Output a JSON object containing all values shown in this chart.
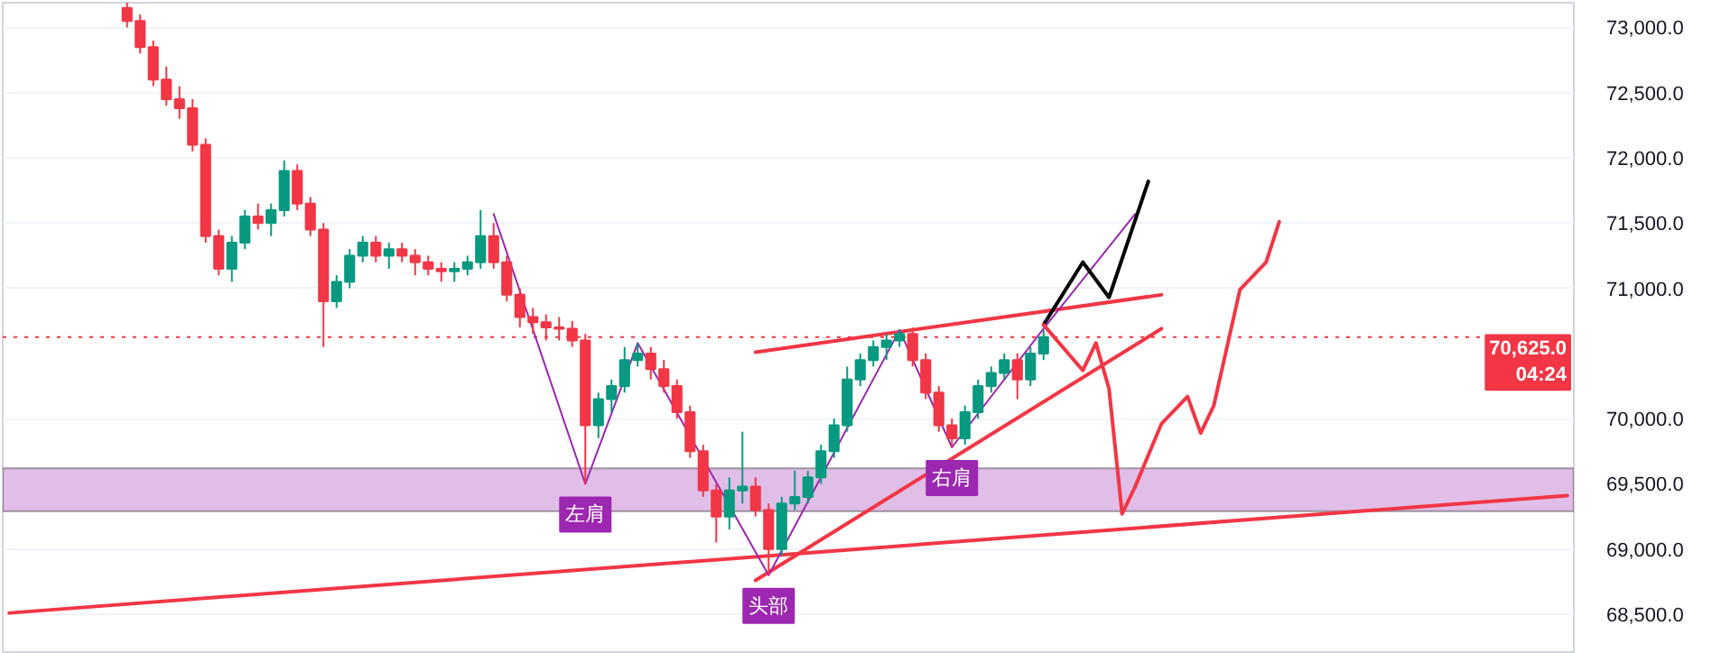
{
  "chart_data": {
    "type": "candlestick",
    "categories": [
      null,
      null,
      null,
      null,
      null,
      null,
      null,
      null,
      null,
      null,
      null,
      null,
      null,
      null,
      null,
      null,
      null,
      null,
      null,
      null,
      null,
      null,
      null,
      null,
      null,
      null,
      null,
      null,
      null,
      null,
      null,
      null,
      null,
      null,
      null,
      null,
      null,
      null,
      null,
      null,
      null,
      null,
      null,
      null,
      null,
      null,
      null,
      null,
      null,
      null,
      null,
      null,
      null,
      null,
      null,
      null,
      null,
      null,
      null,
      null,
      null,
      null,
      null,
      null,
      null,
      null,
      null,
      null,
      null,
      null,
      null,
      null,
      null,
      null,
      null,
      null,
      null,
      null,
      null,
      null,
      null,
      null,
      null,
      null,
      null,
      null,
      null,
      null,
      null,
      null,
      null,
      null,
      null,
      null,
      null,
      null,
      null,
      null,
      null,
      null,
      null,
      null,
      null,
      null,
      null,
      null,
      null,
      null,
      null,
      null,
      null,
      null,
      null,
      null,
      null,
      null,
      null,
      null,
      null,
      null
    ],
    "ohlc": [
      null,
      null,
      null,
      null,
      null,
      null,
      null,
      null,
      null,
      [
        73150,
        73190,
        73000,
        73050
      ],
      [
        73050,
        73100,
        72800,
        72850
      ],
      [
        72850,
        72900,
        72550,
        72600
      ],
      [
        72600,
        72700,
        72400,
        72450
      ],
      [
        72450,
        72550,
        72300,
        72380
      ],
      [
        72380,
        72450,
        72050,
        72100
      ],
      [
        72100,
        72150,
        71350,
        71400
      ],
      [
        71400,
        71450,
        71100,
        71150
      ],
      [
        71150,
        71400,
        71050,
        71350
      ],
      [
        71350,
        71600,
        71300,
        71550
      ],
      [
        71550,
        71650,
        71450,
        71500
      ],
      [
        71500,
        71650,
        71400,
        71600
      ],
      [
        71600,
        71980,
        71550,
        71900
      ],
      [
        71900,
        71950,
        71600,
        71650
      ],
      [
        71650,
        71700,
        71400,
        71450
      ],
      [
        71450,
        71500,
        70550,
        70900
      ],
      [
        70900,
        71100,
        70850,
        71050
      ],
      [
        71050,
        71300,
        71000,
        71250
      ],
      [
        71250,
        71400,
        71200,
        71350
      ],
      [
        71350,
        71400,
        71200,
        71250
      ],
      [
        71250,
        71350,
        71150,
        71300
      ],
      [
        71300,
        71350,
        71200,
        71250
      ],
      [
        71250,
        71300,
        71100,
        71200
      ],
      [
        71200,
        71250,
        71100,
        71150
      ],
      [
        71150,
        71200,
        71050,
        71130
      ],
      [
        71130,
        71200,
        71050,
        71150
      ],
      [
        71150,
        71250,
        71100,
        71200
      ],
      [
        71200,
        71600,
        71150,
        71400
      ],
      [
        71400,
        71500,
        71150,
        71200
      ],
      [
        71200,
        71250,
        70900,
        70950
      ],
      [
        70950,
        71000,
        70700,
        70780
      ],
      [
        70780,
        70850,
        70650,
        70740
      ],
      [
        70740,
        70800,
        70600,
        70700
      ],
      [
        70700,
        70780,
        70600,
        70690
      ],
      [
        70690,
        70750,
        70550,
        70600
      ],
      [
        70600,
        70650,
        69500,
        69950
      ],
      [
        69950,
        70200,
        69850,
        70150
      ],
      [
        70150,
        70300,
        70050,
        70250
      ],
      [
        70250,
        70550,
        70200,
        70450
      ],
      [
        70450,
        70580,
        70400,
        70500
      ],
      [
        70500,
        70550,
        70300,
        70380
      ],
      [
        70380,
        70450,
        70200,
        70250
      ],
      [
        70250,
        70300,
        70000,
        70050
      ],
      [
        70050,
        70100,
        69700,
        69750
      ],
      [
        69750,
        69800,
        69400,
        69450
      ],
      [
        69450,
        69500,
        69050,
        69250
      ],
      [
        69250,
        69550,
        69150,
        69450
      ],
      [
        69450,
        69900,
        69350,
        69480
      ],
      [
        69480,
        69550,
        69250,
        69300
      ],
      [
        69300,
        69350,
        68800,
        69000
      ],
      [
        69000,
        69400,
        68950,
        69350
      ],
      [
        69350,
        69600,
        69300,
        69400
      ],
      [
        69400,
        69600,
        69350,
        69550
      ],
      [
        69550,
        69800,
        69500,
        69750
      ],
      [
        69750,
        70000,
        69700,
        69950
      ],
      [
        69950,
        70400,
        69900,
        70300
      ],
      [
        70300,
        70500,
        70250,
        70450
      ],
      [
        70450,
        70600,
        70400,
        70550
      ],
      [
        70550,
        70650,
        70450,
        70600
      ],
      [
        70600,
        70680,
        70550,
        70650
      ],
      [
        70650,
        70700,
        70400,
        70450
      ],
      [
        70450,
        70500,
        70150,
        70200
      ],
      [
        70200,
        70250,
        69900,
        69950
      ],
      [
        69950,
        70000,
        69780,
        69850
      ],
      [
        69850,
        70100,
        69800,
        70050
      ],
      [
        70050,
        70300,
        70000,
        70250
      ],
      [
        70250,
        70400,
        70200,
        70350
      ],
      [
        70350,
        70500,
        70300,
        70450
      ],
      [
        70450,
        70500,
        70150,
        70300
      ],
      [
        70300,
        70550,
        70250,
        70500
      ],
      [
        70500,
        70680,
        70450,
        70625
      ],
      null,
      null,
      null,
      null,
      null,
      null,
      null,
      null,
      null,
      null,
      null,
      null,
      null,
      null,
      null,
      null,
      null,
      null,
      null,
      null,
      null,
      null,
      null,
      null,
      null,
      null,
      null,
      null,
      null,
      null,
      null,
      null,
      null,
      null,
      null,
      null,
      null,
      null,
      null,
      null
    ],
    "series": [
      {
        "type": "line",
        "color": "#f23645",
        "values": [
          68510,
          null,
          null,
          null,
          null,
          null,
          null,
          null,
          null,
          null,
          null,
          null,
          null,
          null,
          null,
          null,
          null,
          null,
          null,
          null,
          null,
          null,
          null,
          null,
          null,
          null,
          null,
          null,
          null,
          null,
          null,
          null,
          null,
          null,
          null,
          null,
          null,
          null,
          null,
          null,
          null,
          null,
          null,
          null,
          null,
          null,
          null,
          null,
          null,
          null,
          null,
          null,
          null,
          null,
          null,
          null,
          null,
          null,
          null,
          null,
          null,
          null,
          null,
          null,
          null,
          null,
          null,
          null,
          null,
          null,
          null,
          null,
          null,
          null,
          null,
          null,
          null,
          null,
          null,
          null,
          null,
          null,
          null,
          null,
          null,
          null,
          null,
          null,
          null,
          null,
          null,
          null,
          null,
          null,
          null,
          null,
          null,
          null,
          null,
          null,
          null,
          null,
          null,
          null,
          null,
          null,
          null,
          null,
          null,
          null,
          null,
          null,
          null,
          null,
          null,
          null,
          null,
          null,
          null,
          69410
        ]
      },
      {
        "type": "line",
        "color": "#f23645",
        "values": [
          null,
          null,
          null,
          null,
          null,
          null,
          null,
          null,
          null,
          null,
          null,
          null,
          null,
          null,
          null,
          null,
          null,
          null,
          null,
          null,
          null,
          null,
          null,
          null,
          null,
          null,
          null,
          null,
          null,
          null,
          null,
          null,
          null,
          null,
          null,
          null,
          null,
          null,
          null,
          null,
          null,
          null,
          null,
          null,
          null,
          null,
          null,
          null,
          null,
          null,
          null,
          null,
          null,
          null,
          null,
          null,
          null,
          70510,
          null,
          null,
          null,
          null,
          null,
          null,
          null,
          null,
          null,
          null,
          null,
          null,
          null,
          null,
          null,
          null,
          null,
          null,
          null,
          null,
          null,
          null,
          null,
          null,
          null,
          null,
          null,
          null,
          null,
          null,
          70950,
          null,
          null,
          null,
          null,
          null,
          null,
          null,
          null,
          null,
          null,
          null,
          null,
          null,
          null,
          null,
          null,
          null,
          null,
          null,
          null,
          null,
          null,
          null,
          null,
          null,
          null,
          null,
          null,
          null,
          null,
          null
        ]
      },
      {
        "type": "line",
        "color": "#f23645",
        "values": [
          null,
          null,
          null,
          null,
          null,
          null,
          null,
          null,
          null,
          null,
          null,
          null,
          null,
          null,
          null,
          null,
          null,
          null,
          null,
          null,
          null,
          null,
          null,
          null,
          null,
          null,
          null,
          null,
          null,
          null,
          null,
          null,
          null,
          null,
          null,
          null,
          null,
          null,
          null,
          null,
          null,
          null,
          null,
          null,
          null,
          null,
          null,
          null,
          null,
          null,
          null,
          null,
          null,
          null,
          null,
          null,
          null,
          68760,
          null,
          null,
          null,
          null,
          null,
          null,
          null,
          null,
          null,
          null,
          null,
          null,
          null,
          null,
          null,
          null,
          null,
          null,
          null,
          null,
          null,
          null,
          null,
          null,
          null,
          null,
          null,
          null,
          null,
          null,
          70690,
          null,
          null,
          null,
          null,
          null,
          null,
          null,
          null,
          null,
          null,
          null,
          null,
          null,
          null,
          null,
          null,
          null,
          null,
          null,
          null,
          null,
          null,
          null,
          null,
          null,
          null,
          null,
          null,
          null,
          null,
          null
        ]
      },
      {
        "type": "line",
        "color": "#9c27b0",
        "values": [
          null,
          null,
          null,
          null,
          null,
          null,
          null,
          null,
          null,
          null,
          null,
          null,
          null,
          null,
          null,
          null,
          null,
          null,
          null,
          null,
          null,
          null,
          null,
          null,
          null,
          null,
          null,
          null,
          null,
          null,
          null,
          null,
          null,
          null,
          null,
          null,
          null,
          71570,
          null,
          null,
          null,
          null,
          null,
          null,
          69500,
          null,
          null,
          null,
          70580,
          null,
          null,
          null,
          null,
          null,
          null,
          null,
          null,
          null,
          68800,
          null,
          null,
          null,
          null,
          null,
          null,
          null,
          null,
          null,
          70680,
          null,
          null,
          null,
          69780,
          null,
          null,
          null,
          null,
          null,
          null,
          70690,
          null,
          null,
          null,
          null,
          null,
          null,
          71570,
          null,
          null,
          null,
          null,
          null,
          null,
          null,
          null,
          null,
          null,
          null,
          null,
          null,
          null,
          null,
          null,
          null,
          null,
          null,
          null,
          null,
          null,
          null,
          null,
          null,
          null,
          null,
          null,
          null,
          null,
          null,
          null,
          null
        ]
      },
      {
        "type": "line",
        "color": "#000000",
        "values": [
          null,
          null,
          null,
          null,
          null,
          null,
          null,
          null,
          null,
          null,
          null,
          null,
          null,
          null,
          null,
          null,
          null,
          null,
          null,
          null,
          null,
          null,
          null,
          null,
          null,
          null,
          null,
          null,
          null,
          null,
          null,
          null,
          null,
          null,
          null,
          null,
          null,
          null,
          null,
          null,
          null,
          null,
          null,
          null,
          null,
          null,
          null,
          null,
          null,
          null,
          null,
          null,
          null,
          null,
          null,
          null,
          null,
          null,
          null,
          null,
          null,
          null,
          null,
          null,
          null,
          null,
          null,
          null,
          null,
          null,
          null,
          null,
          null,
          null,
          null,
          null,
          null,
          null,
          null,
          70720,
          null,
          null,
          71200,
          null,
          70930,
          null,
          null,
          71820,
          null,
          null,
          null,
          null,
          null,
          null,
          null,
          null,
          null,
          null,
          null,
          null,
          null,
          null,
          null,
          null,
          null,
          null,
          null,
          null,
          null,
          null,
          null,
          null,
          null,
          null,
          null,
          null,
          null,
          null,
          null,
          null
        ]
      },
      {
        "type": "line",
        "color": "#f23645",
        "values": [
          null,
          null,
          null,
          null,
          null,
          null,
          null,
          null,
          null,
          null,
          null,
          null,
          null,
          null,
          null,
          null,
          null,
          null,
          null,
          null,
          null,
          null,
          null,
          null,
          null,
          null,
          null,
          null,
          null,
          null,
          null,
          null,
          null,
          null,
          null,
          null,
          null,
          null,
          null,
          null,
          null,
          null,
          null,
          null,
          null,
          null,
          null,
          null,
          null,
          null,
          null,
          null,
          null,
          null,
          null,
          null,
          null,
          null,
          null,
          null,
          null,
          null,
          null,
          null,
          null,
          null,
          null,
          null,
          null,
          null,
          null,
          null,
          null,
          null,
          null,
          null,
          null,
          null,
          null,
          70720,
          null,
          null,
          70370,
          70580,
          70230,
          69270,
          69480,
          null,
          69960,
          null,
          70170,
          69890,
          70100,
          null,
          70990,
          null,
          71200,
          71510,
          null,
          null,
          null,
          null,
          null,
          null,
          null,
          null,
          null,
          null,
          null,
          null,
          null,
          null,
          null,
          null,
          null,
          null,
          null,
          null,
          null,
          null
        ]
      }
    ],
    "bands": [
      {
        "axis": "y",
        "from": 69290,
        "to": 69620,
        "color": "#e1bee7"
      }
    ],
    "ref_lines": [
      {
        "axis": "y",
        "value": 70625,
        "label": "70,625.0\n04:24",
        "color": "#f23645",
        "line_style": "dotted"
      }
    ],
    "annotations": [
      {
        "text": "左肩",
        "y": 69500
      },
      {
        "text": "头部",
        "y": 68800
      },
      {
        "text": "右肩",
        "y": 69780
      }
    ],
    "ylim": [
      68210,
      73190
    ],
    "yticks": [
      {
        "value": 68500,
        "label": "68,500.0"
      },
      {
        "value": 69000,
        "label": "69,000.0"
      },
      {
        "value": 69500,
        "label": "69,500.0"
      },
      {
        "value": 70000,
        "label": "70,000.0"
      },
      {
        "value": 71000,
        "label": "71,000.0"
      },
      {
        "value": 71500,
        "label": "71,500.0"
      },
      {
        "value": 72000,
        "label": "72,000.0"
      },
      {
        "value": 72500,
        "label": "72,500.0"
      },
      {
        "value": 73000,
        "label": "73,000.0"
      }
    ],
    "grid": true,
    "tick_labels": "y"
  }
}
